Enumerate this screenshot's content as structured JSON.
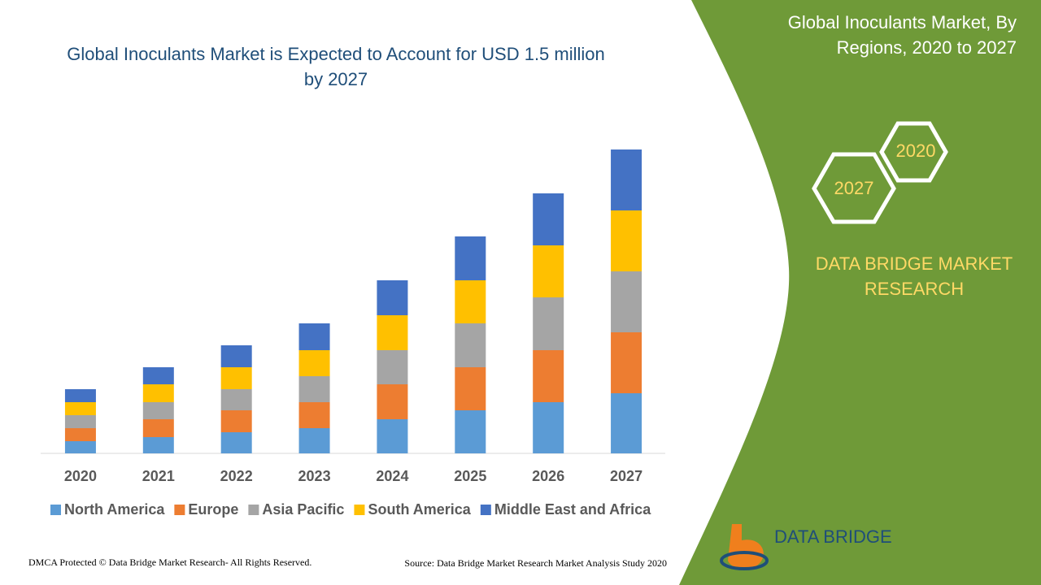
{
  "chart_data": {
    "type": "stacked-bar",
    "title": "Global Inoculants Market is Expected to Account for USD 1.5 million by 2027",
    "categories": [
      "2020",
      "2021",
      "2022",
      "2023",
      "2024",
      "2025",
      "2026",
      "2027"
    ],
    "series": [
      {
        "name": "North America",
        "color": "#5b9bd5",
        "values": [
          15,
          20,
          26,
          31,
          42,
          53,
          63,
          74
        ]
      },
      {
        "name": "Europe",
        "color": "#ed7d31",
        "values": [
          16,
          22,
          27,
          32,
          43,
          53,
          64,
          75
        ]
      },
      {
        "name": "Asia Pacific",
        "color": "#a5a5a5",
        "values": [
          16,
          21,
          26,
          32,
          42,
          54,
          65,
          75
        ]
      },
      {
        "name": "South America",
        "color": "#ffc000",
        "values": [
          16,
          22,
          27,
          32,
          43,
          53,
          64,
          75
        ]
      },
      {
        "name": "Middle East and Africa",
        "color": "#4472c4",
        "values": [
          16,
          21,
          27,
          33,
          43,
          54,
          64,
          75
        ]
      }
    ],
    "legend": "bottom"
  },
  "panel": {
    "title": "Global Inoculants Market, By Regions, 2020 to 2027",
    "hex_start": "2020",
    "hex_end": "2027",
    "brand": "DATA BRIDGE MARKET RESEARCH",
    "logo": "DATA BRIDGE"
  },
  "footer": {
    "left": "DMCA Protected © Data Bridge Market Research- All Rights Reserved.",
    "right": "Source: Data Bridge Market Research Market Analysis Study 2020"
  }
}
